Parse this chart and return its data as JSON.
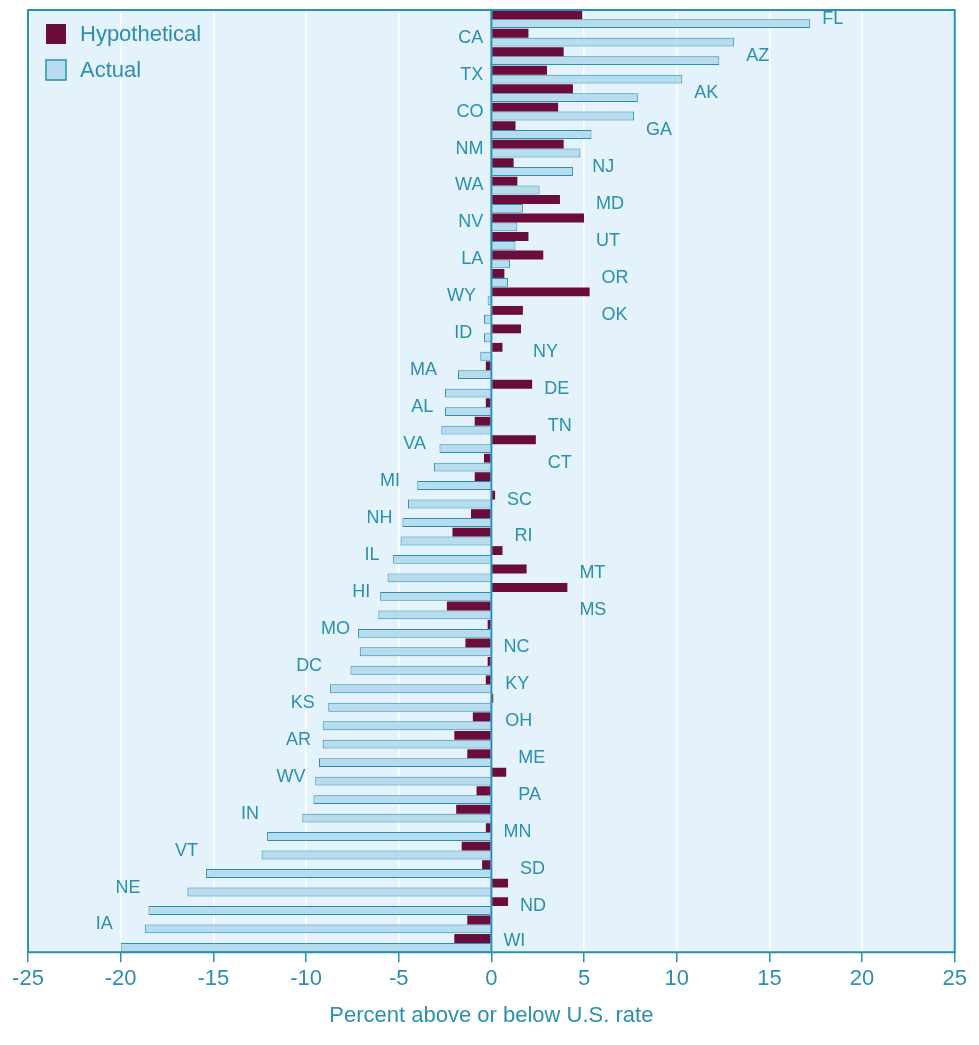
{
  "chart_data": {
    "type": "bar",
    "orientation": "horizontal",
    "xlabel": "Percent above or below U.S. rate",
    "categories": [
      "FL",
      "CA",
      "AZ",
      "TX",
      "AK",
      "CO",
      "GA",
      "NM",
      "NJ",
      "WA",
      "MD",
      "NV",
      "UT",
      "LA",
      "OR",
      "WY",
      "OK",
      "ID",
      "NY",
      "MA",
      "DE",
      "AL",
      "TN",
      "VA",
      "CT",
      "MI",
      "SC",
      "NH",
      "RI",
      "IL",
      "MT",
      "HI",
      "MS",
      "MO",
      "NC",
      "DC",
      "KY",
      "KS",
      "OH",
      "AR",
      "ME",
      "WV",
      "PA",
      "IN",
      "MN",
      "VT",
      "SD",
      "NE",
      "ND",
      "IA",
      "WI"
    ],
    "series": [
      {
        "name": "Hypothetical",
        "color": "#6b0d3c",
        "values": [
          4.9,
          2.0,
          3.9,
          3.0,
          4.4,
          3.6,
          1.3,
          3.9,
          1.2,
          1.4,
          3.7,
          5.0,
          2.0,
          2.8,
          0.7,
          5.3,
          1.7,
          1.6,
          0.6,
          -0.3,
          2.2,
          -0.3,
          -0.9,
          2.4,
          -0.4,
          -0.9,
          0.2,
          -1.1,
          -2.1,
          0.6,
          1.9,
          4.1,
          -2.4,
          -0.2,
          -1.4,
          -0.2,
          -0.3,
          0.1,
          -1.0,
          -2.0,
          -1.3,
          0.8,
          -0.8,
          -1.9,
          -0.3,
          -1.6,
          -0.5,
          0.9,
          0.9,
          -1.3,
          -2.0
        ]
      },
      {
        "name": "Actual",
        "color": "#b7dced",
        "values": [
          17.2,
          13.1,
          12.3,
          10.3,
          7.9,
          7.7,
          5.4,
          4.8,
          4.4,
          2.6,
          1.7,
          1.4,
          1.3,
          1.0,
          0.9,
          -0.2,
          -0.4,
          -0.4,
          -0.6,
          -1.8,
          -2.5,
          -2.5,
          -2.7,
          -2.8,
          -3.1,
          -4.0,
          -4.5,
          -4.8,
          -4.9,
          -5.3,
          -5.6,
          -6.0,
          -6.1,
          -7.2,
          -7.1,
          -7.6,
          -8.7,
          -8.8,
          -9.1,
          -9.1,
          -9.3,
          -9.5,
          -9.6,
          -10.2,
          -12.1,
          -12.4,
          -15.4,
          -16.4,
          -18.5,
          -18.7,
          -20.0
        ]
      }
    ],
    "xlim": [
      -25,
      25
    ],
    "xticks": [
      -25,
      -20,
      -15,
      -10,
      -5,
      0,
      5,
      10,
      15,
      20,
      25
    ],
    "grid": "x",
    "legend": "top left"
  }
}
